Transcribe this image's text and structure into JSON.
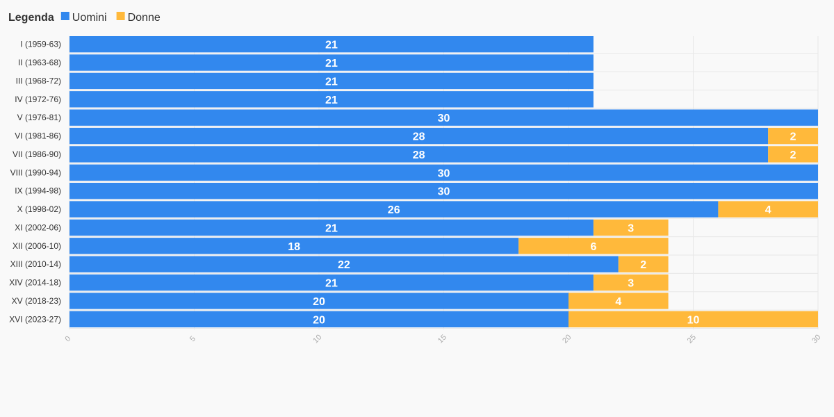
{
  "legend": {
    "title": "Legenda"
  },
  "chart_data": {
    "type": "bar",
    "orientation": "horizontal",
    "stacked": true,
    "categories": [
      "I (1959-63)",
      "II (1963-68)",
      "III (1968-72)",
      "IV (1972-76)",
      "V (1976-81)",
      "VI (1981-86)",
      "VII (1986-90)",
      "VIII (1990-94)",
      "IX (1994-98)",
      "X (1998-02)",
      "XI (2002-06)",
      "XII (2006-10)",
      "XIII (2010-14)",
      "XIV (2014-18)",
      "XV (2018-23)",
      "XVI (2023-27)"
    ],
    "series": [
      {
        "name": "Uomini",
        "color": "#3288ee",
        "values": [
          21,
          21,
          21,
          21,
          30,
          28,
          28,
          30,
          30,
          26,
          21,
          18,
          22,
          21,
          20,
          20
        ]
      },
      {
        "name": "Donne",
        "color": "#ffb93b",
        "values": [
          0,
          0,
          0,
          0,
          0,
          2,
          2,
          0,
          0,
          4,
          3,
          6,
          2,
          3,
          4,
          10
        ]
      }
    ],
    "xlim": [
      0,
      30
    ],
    "xticks": [
      "0",
      "5",
      "10",
      "15",
      "20",
      "25",
      "30"
    ],
    "grid": true,
    "legend_position": "top-left"
  }
}
